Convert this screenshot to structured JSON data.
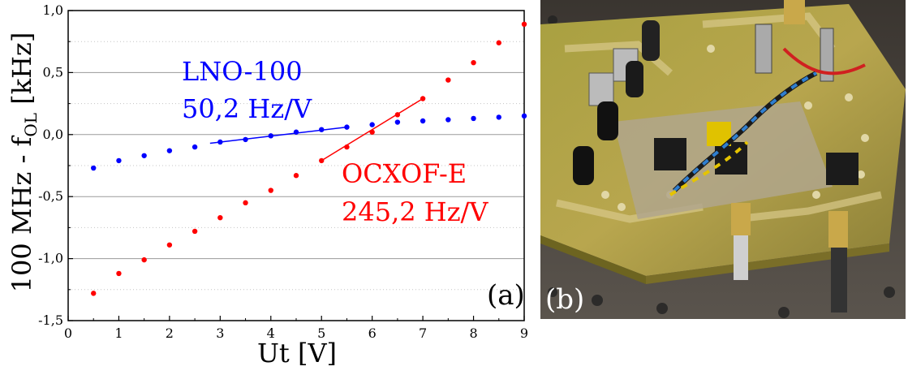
{
  "chart_data": {
    "type": "scatter",
    "xlabel": "Ut [V]",
    "ylabel": "100 MHz - f",
    "ylabel_sub": "OL",
    "ylabel_unit": " [kHz]",
    "xlim": [
      0,
      9
    ],
    "ylim": [
      -1.5,
      1.0
    ],
    "grid": true,
    "panel_label": "(a)",
    "x_ticks": [
      "0",
      "1",
      "2",
      "3",
      "4",
      "5",
      "6",
      "7",
      "8",
      "9"
    ],
    "y_ticks": [
      "-1,5",
      "-1,0",
      "-0,5",
      "0,0",
      "0,5",
      "1,0"
    ],
    "series": [
      {
        "name": "LNO-100",
        "slope_label": "50,2 Hz/V",
        "color": "#0000ff",
        "x": [
          0.5,
          1.0,
          1.5,
          2.0,
          2.5,
          3.0,
          3.5,
          4.0,
          4.5,
          5.0,
          5.5,
          6.0,
          6.5,
          7.0,
          7.5,
          8.0,
          8.5,
          9.0
        ],
        "y": [
          -0.27,
          -0.21,
          -0.17,
          -0.13,
          -0.1,
          -0.06,
          -0.04,
          -0.01,
          0.02,
          0.04,
          0.06,
          0.08,
          0.1,
          0.11,
          0.12,
          0.13,
          0.14,
          0.15
        ],
        "fit": {
          "x": [
            2.8,
            5.5
          ],
          "y": [
            -0.07,
            0.06
          ]
        }
      },
      {
        "name": "OCXOF-E",
        "slope_label": "245,2 Hz/V",
        "color": "#ff0000",
        "x": [
          0.5,
          1.0,
          1.5,
          2.0,
          2.5,
          3.0,
          3.5,
          4.0,
          4.5,
          5.0,
          5.5,
          6.0,
          6.5,
          7.0,
          7.5,
          8.0,
          8.5,
          9.0
        ],
        "y": [
          -1.28,
          -1.12,
          -1.01,
          -0.89,
          -0.78,
          -0.67,
          -0.55,
          -0.45,
          -0.33,
          -0.21,
          -0.1,
          0.02,
          0.16,
          0.29,
          0.44,
          0.58,
          0.74,
          0.89
        ],
        "fit": {
          "x": [
            5.0,
            7.0
          ],
          "y": [
            -0.21,
            0.29
          ]
        }
      }
    ]
  },
  "photo": {
    "panel_label": "(b)"
  }
}
